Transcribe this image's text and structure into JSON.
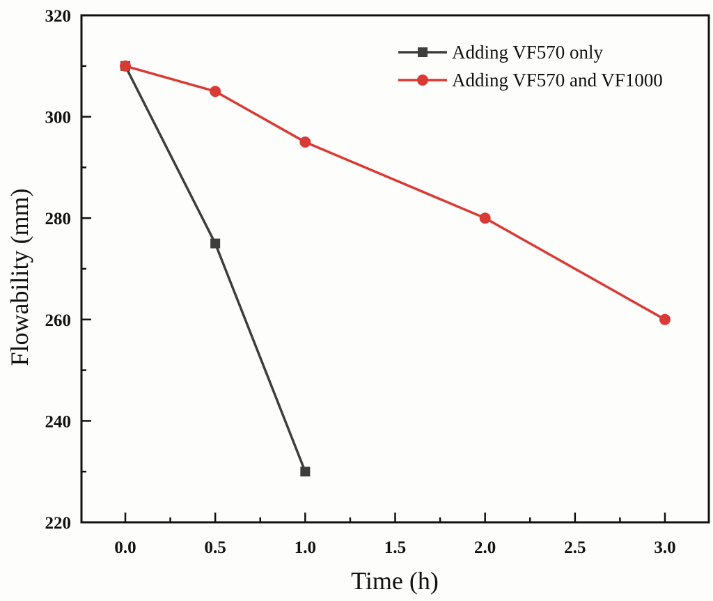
{
  "chart_data": {
    "type": "line",
    "title": "",
    "xlabel": "Time (h)",
    "ylabel": "Flowability (mm)",
    "xlim": [
      -0.24,
      3.25
    ],
    "ylim": [
      220,
      320
    ],
    "x_ticks": [
      0.0,
      0.5,
      1.0,
      1.5,
      2.0,
      2.5,
      3.0
    ],
    "x_tick_labels": [
      "0.0",
      "0.5",
      "1.0",
      "1.5",
      "2.0",
      "2.5",
      "3.0"
    ],
    "x_minor_ticks": [
      0.25,
      0.75,
      1.25,
      1.75,
      2.25,
      2.75
    ],
    "y_ticks": [
      220,
      240,
      260,
      280,
      300,
      320
    ],
    "y_tick_labels": [
      "220",
      "240",
      "260",
      "280",
      "300",
      "320"
    ],
    "y_minor_ticks": [
      230,
      250,
      270,
      290,
      310
    ],
    "grid": false,
    "legend_position": "top-right",
    "series": [
      {
        "name": "Adding VF570 only",
        "color": "#3d3d3d",
        "marker": "square",
        "x": [
          0.0,
          0.5,
          1.0
        ],
        "y": [
          310,
          275,
          230
        ]
      },
      {
        "name": "Adding VF570 and VF1000",
        "color": "#d93a36",
        "marker": "circle",
        "x": [
          0.0,
          0.5,
          1.0,
          2.0,
          3.0
        ],
        "y": [
          310,
          305,
          295,
          280,
          260
        ]
      }
    ]
  }
}
